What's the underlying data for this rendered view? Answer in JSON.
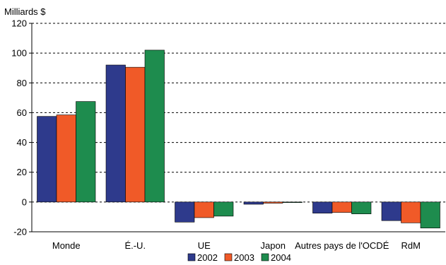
{
  "chart_data": {
    "type": "bar",
    "title": "",
    "unit_label": "Milliards $",
    "xlabel": "",
    "ylabel": "",
    "categories": [
      "Monde",
      "É.-U.",
      "UE",
      "Japon",
      "Autres pays de l'OCDÉ",
      "RdM"
    ],
    "series": [
      {
        "name": "2002",
        "color": "#2e3a8c",
        "values": [
          57.5,
          92,
          -13.5,
          -1.5,
          -7.5,
          -12.5
        ]
      },
      {
        "name": "2003",
        "color": "#f05a28",
        "values": [
          58.5,
          90.5,
          -10.5,
          -0.8,
          -7,
          -14
        ]
      },
      {
        "name": "2004",
        "color": "#1e8c4e",
        "values": [
          67.5,
          102,
          -9.5,
          -0.3,
          -8,
          -17.5
        ]
      }
    ],
    "ylim": [
      -20,
      120
    ],
    "yticks": [
      "120",
      "100",
      "80",
      "60",
      "40",
      "20",
      "0",
      "-20"
    ],
    "ytick_values": [
      120,
      100,
      80,
      60,
      40,
      20,
      0,
      -20
    ],
    "grid": true,
    "legend_position": "bottom-center"
  }
}
